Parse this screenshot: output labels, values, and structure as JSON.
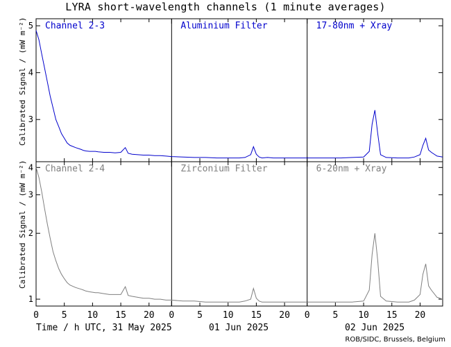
{
  "title": "LYRA short-wavelength channels (1 minute averages)",
  "credit": "ROB/SIDC, Brussels, Belgium",
  "colors": {
    "top": "#0000cc",
    "bottom": "#7f7f7f",
    "axis": "#000000"
  },
  "chart_data": [
    {
      "type": "line",
      "row": "top",
      "ylabel": "Calibrated Signal / (mW m⁻²)",
      "ylim": [
        2.1,
        5.15
      ],
      "yticks": [
        3,
        4,
        5
      ],
      "yscale": "linear",
      "panels": [
        {
          "label": "Channel 2-3",
          "day": "31 May 2025"
        },
        {
          "label": "Aluminium Filter",
          "day": "01 Jun 2025"
        },
        {
          "label": "17-80nm + Xray",
          "day": "02 Jun 2025"
        }
      ],
      "series": [
        {
          "x": [
            0,
            0.5,
            1,
            1.5,
            2,
            2.5,
            3,
            3.5,
            4,
            4.5,
            5,
            5.5,
            6,
            7,
            8,
            8.4,
            8.8,
            9.5,
            10.5,
            11,
            12,
            13,
            14,
            15,
            15.8,
            16.3,
            17,
            18,
            19,
            20,
            21,
            22,
            23,
            24,
            26,
            28,
            30,
            32,
            34,
            36,
            37,
            38,
            38.5,
            39,
            39.5,
            40,
            41,
            42,
            44,
            46,
            48,
            50,
            52,
            54,
            56,
            58,
            59,
            59.5,
            60,
            60.5,
            61,
            62,
            64,
            66,
            67,
            68,
            68.5,
            69,
            69.5,
            70,
            71,
            72
          ],
          "y": [
            4.9,
            4.7,
            4.4,
            4.1,
            3.8,
            3.5,
            3.25,
            3.0,
            2.85,
            2.7,
            2.6,
            2.5,
            2.45,
            2.4,
            2.36,
            2.34,
            2.33,
            2.32,
            2.32,
            2.31,
            2.3,
            2.3,
            2.29,
            2.3,
            2.4,
            2.28,
            2.26,
            2.25,
            2.24,
            2.24,
            2.23,
            2.23,
            2.22,
            2.21,
            2.2,
            2.19,
            2.19,
            2.18,
            2.18,
            2.18,
            2.19,
            2.25,
            2.42,
            2.26,
            2.2,
            2.18,
            2.19,
            2.18,
            2.18,
            2.18,
            2.18,
            2.18,
            2.18,
            2.18,
            2.19,
            2.2,
            2.32,
            2.9,
            3.2,
            2.7,
            2.25,
            2.19,
            2.18,
            2.18,
            2.2,
            2.25,
            2.45,
            2.6,
            2.35,
            2.3,
            2.22,
            2.2
          ]
        }
      ]
    },
    {
      "type": "line",
      "row": "bottom",
      "ylabel": "Calibrated Signal / (mW m⁻²)",
      "ylim": [
        0.93,
        4.25
      ],
      "yticks": [
        1,
        2,
        3,
        4
      ],
      "yscale": "log",
      "panels": [
        {
          "label": "Channel 2-4",
          "day": "31 May 2025"
        },
        {
          "label": "Zirconium Filter",
          "day": "01 Jun 2025"
        },
        {
          "label": "6-20nm + Xray",
          "day": "02 Jun 2025"
        }
      ],
      "series": [
        {
          "x": [
            0,
            0.5,
            1,
            1.5,
            2,
            2.5,
            3,
            3.5,
            4,
            4.5,
            5,
            5.5,
            6,
            7,
            8,
            8.4,
            8.8,
            9.5,
            10.5,
            11,
            12,
            13,
            14,
            15,
            15.8,
            16.3,
            17,
            18,
            19,
            20,
            21,
            22,
            23,
            24,
            26,
            28,
            30,
            32,
            34,
            36,
            37,
            38,
            38.5,
            39,
            39.5,
            40,
            41,
            42,
            44,
            46,
            48,
            50,
            52,
            54,
            56,
            58,
            59,
            59.5,
            60,
            60.5,
            61,
            62,
            64,
            66,
            67,
            68,
            68.5,
            69,
            69.5,
            70,
            71,
            72
          ],
          "y": [
            4.0,
            3.6,
            3.1,
            2.6,
            2.2,
            1.9,
            1.65,
            1.5,
            1.38,
            1.3,
            1.24,
            1.19,
            1.16,
            1.13,
            1.11,
            1.1,
            1.09,
            1.08,
            1.07,
            1.07,
            1.06,
            1.05,
            1.05,
            1.05,
            1.14,
            1.04,
            1.03,
            1.02,
            1.01,
            1.01,
            1.0,
            1.0,
            0.99,
            0.99,
            0.98,
            0.98,
            0.97,
            0.97,
            0.97,
            0.97,
            0.98,
            1.0,
            1.12,
            1.01,
            0.98,
            0.97,
            0.97,
            0.97,
            0.97,
            0.97,
            0.97,
            0.97,
            0.97,
            0.97,
            0.97,
            0.98,
            1.1,
            1.6,
            2.0,
            1.5,
            1.03,
            0.98,
            0.97,
            0.97,
            0.99,
            1.05,
            1.3,
            1.45,
            1.15,
            1.1,
            1.02,
            1.0
          ]
        }
      ]
    }
  ],
  "xaxis": {
    "range": [
      0,
      72
    ],
    "ticks": [
      0,
      5,
      10,
      15,
      20,
      24,
      29,
      34,
      39,
      44,
      48,
      53,
      58,
      63,
      68
    ],
    "ticklabels": [
      "0",
      "5",
      "10",
      "15",
      "20",
      "0",
      "5",
      "10",
      "15",
      "20",
      "0",
      "5",
      "10",
      "15",
      "20"
    ],
    "label_prefix": "Time / h UTC, 31 May 2025",
    "day_labels": [
      "01 Jun 2025",
      "02 Jun 2025"
    ]
  }
}
